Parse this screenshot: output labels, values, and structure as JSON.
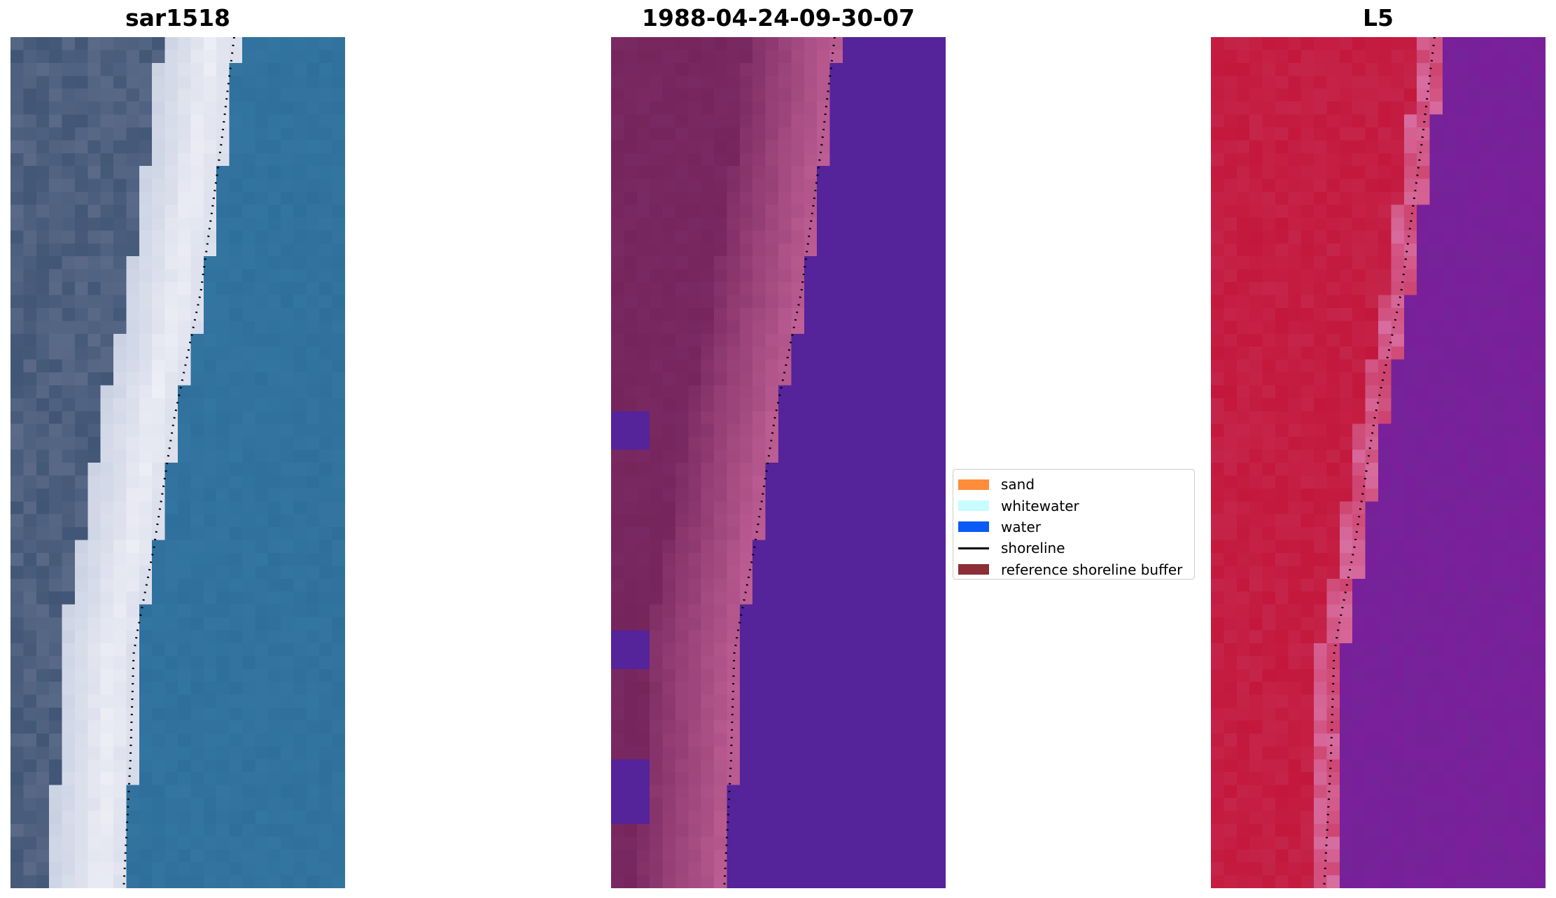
{
  "panels": [
    {
      "title": "sar1518",
      "kind": "rgb"
    },
    {
      "title": "1988-04-24-09-30-07",
      "kind": "classified"
    },
    {
      "title": "L5",
      "kind": "mndwi"
    }
  ],
  "legend": {
    "items": [
      {
        "label": "sand",
        "type": "patch",
        "color": "#ff8c3a"
      },
      {
        "label": "whitewater",
        "type": "patch",
        "color": "#c8fcff"
      },
      {
        "label": "water",
        "type": "patch",
        "color": "#0a5af5"
      },
      {
        "label": "shoreline",
        "type": "line",
        "color": "#000000"
      },
      {
        "label": "reference shoreline buffer",
        "type": "patch",
        "color": "#8b2e36"
      }
    ]
  },
  "colors": {
    "rgb_water": "#2f6f9c",
    "rgb_beach": "#eeeef6",
    "rgb_land": "#5a6a88",
    "classified_water": "#55239a",
    "classified_land": "#7a2a62",
    "classified_beach": "#c06096",
    "index_land": "#c4173c",
    "index_water": "#7a1f9a",
    "shoreline": "#000000"
  }
}
